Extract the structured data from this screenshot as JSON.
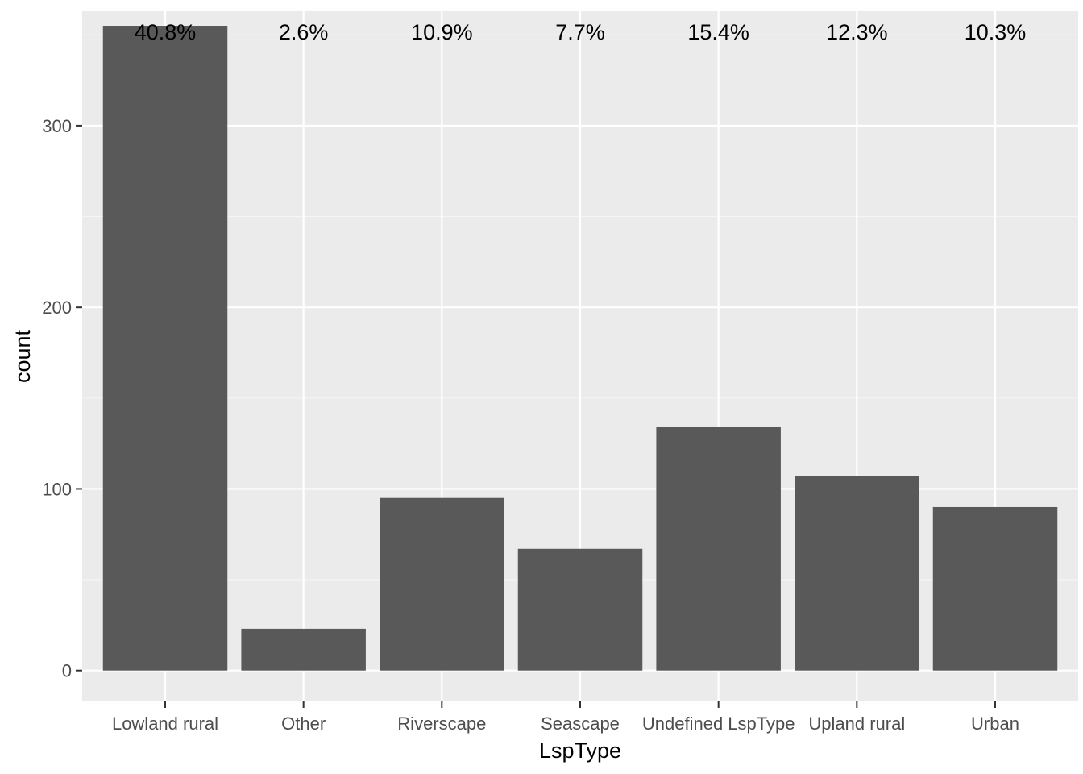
{
  "chart_data": {
    "type": "bar",
    "categories": [
      "Lowland rural",
      "Other",
      "Riverscape",
      "Seascape",
      "Undefined LspType",
      "Upland rural",
      "Urban"
    ],
    "values": [
      355,
      23,
      95,
      67,
      134,
      107,
      90
    ],
    "data_labels": [
      "40.8%",
      "2.6%",
      "10.9%",
      "7.7%",
      "15.4%",
      "12.3%",
      "10.3%"
    ],
    "xlabel": "LspType",
    "ylabel": "count",
    "ylim": [
      -17,
      363
    ],
    "yticks": [
      0,
      100,
      200,
      300
    ],
    "ytick_labels": [
      "0",
      "100",
      "200",
      "300"
    ],
    "grid": true,
    "colors": {
      "panel_background": "#ebebeb",
      "grid_major": "#ffffff",
      "grid_minor": "#f5f5f5",
      "bar_fill": "#595959",
      "tick_color": "#333333"
    }
  }
}
